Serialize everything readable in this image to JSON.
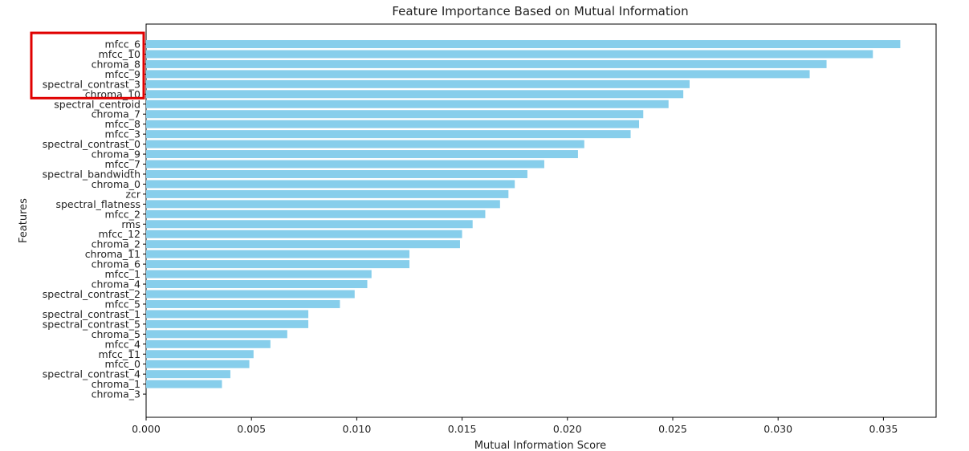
{
  "chart_data": {
    "type": "bar",
    "orientation": "horizontal",
    "title": "Feature Importance Based on Mutual Information",
    "xlabel": "Mutual Information Score",
    "ylabel": "Features",
    "xlim": [
      0,
      0.0375
    ],
    "xticks": [
      "0.000",
      "0.005",
      "0.010",
      "0.015",
      "0.020",
      "0.025",
      "0.030",
      "0.035"
    ],
    "categories": [
      "mfcc_6",
      "mfcc_10",
      "chroma_8",
      "mfcc_9",
      "spectral_contrast_3",
      "chroma_10",
      "spectral_centroid",
      "chroma_7",
      "mfcc_8",
      "mfcc_3",
      "spectral_contrast_0",
      "chroma_9",
      "mfcc_7",
      "spectral_bandwidth",
      "chroma_0",
      "zcr",
      "spectral_flatness",
      "mfcc_2",
      "rms",
      "mfcc_12",
      "chroma_2",
      "chroma_11",
      "chroma_6",
      "mfcc_1",
      "chroma_4",
      "spectral_contrast_2",
      "mfcc_5",
      "spectral_contrast_1",
      "spectral_contrast_5",
      "chroma_5",
      "mfcc_4",
      "mfcc_11",
      "mfcc_0",
      "spectral_contrast_4",
      "chroma_1",
      "chroma_3"
    ],
    "values": [
      0.0358,
      0.0345,
      0.0323,
      0.0315,
      0.0258,
      0.0255,
      0.0248,
      0.0236,
      0.0234,
      0.023,
      0.0208,
      0.0205,
      0.0189,
      0.0181,
      0.0175,
      0.0172,
      0.0168,
      0.0161,
      0.0155,
      0.015,
      0.0149,
      0.0125,
      0.0125,
      0.0107,
      0.0105,
      0.0099,
      0.0092,
      0.0077,
      0.0077,
      0.0067,
      0.0059,
      0.0051,
      0.0049,
      0.004,
      0.0036,
      0.0
    ],
    "bar_color": "#87ceeb",
    "grid": false,
    "highlight": {
      "color": "#e00000",
      "covers": [
        "mfcc_6",
        "mfcc_10",
        "chroma_8",
        "mfcc_9",
        "spectral_contrast_3",
        "chroma_10"
      ]
    }
  }
}
